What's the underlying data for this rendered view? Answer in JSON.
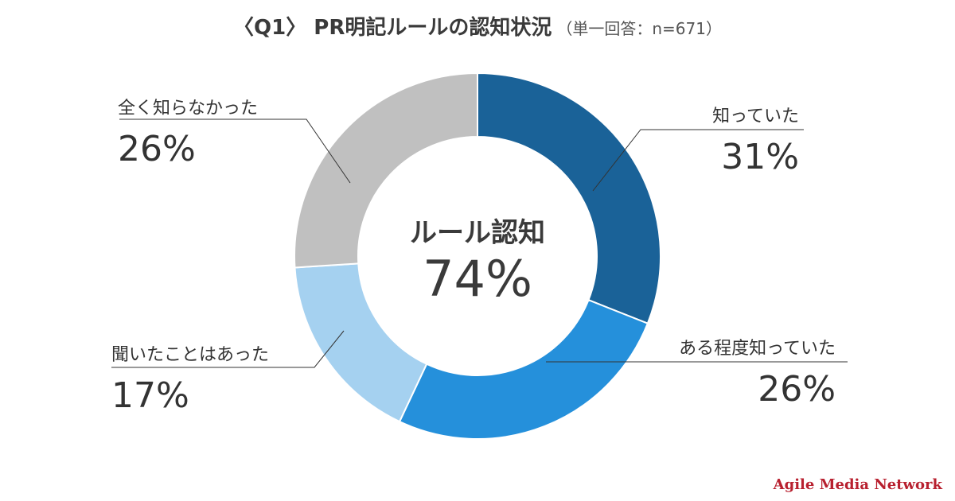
{
  "header": {
    "title": "〈Q1〉 PR明記ルールの認知状況",
    "subtitle": "（単一回答：n=671）"
  },
  "center": {
    "label": "ルール認知",
    "value": "74%"
  },
  "chart_data": {
    "type": "pie",
    "donut": true,
    "slices": [
      {
        "label": "知っていた",
        "value": 31,
        "display": "31%",
        "color": "#1a6298"
      },
      {
        "label": "ある程度知っていた",
        "value": 26,
        "display": "26%",
        "color": "#2590db"
      },
      {
        "label": "聞いたことはあった",
        "value": 17,
        "display": "17%",
        "color": "#a5d1f0"
      },
      {
        "label": "全く知らなかった",
        "value": 26,
        "display": "26%",
        "color": "#c0c0c0"
      }
    ]
  },
  "branding": {
    "logo_text": "Agile Media Network",
    "logo_color": "#b8202f"
  }
}
